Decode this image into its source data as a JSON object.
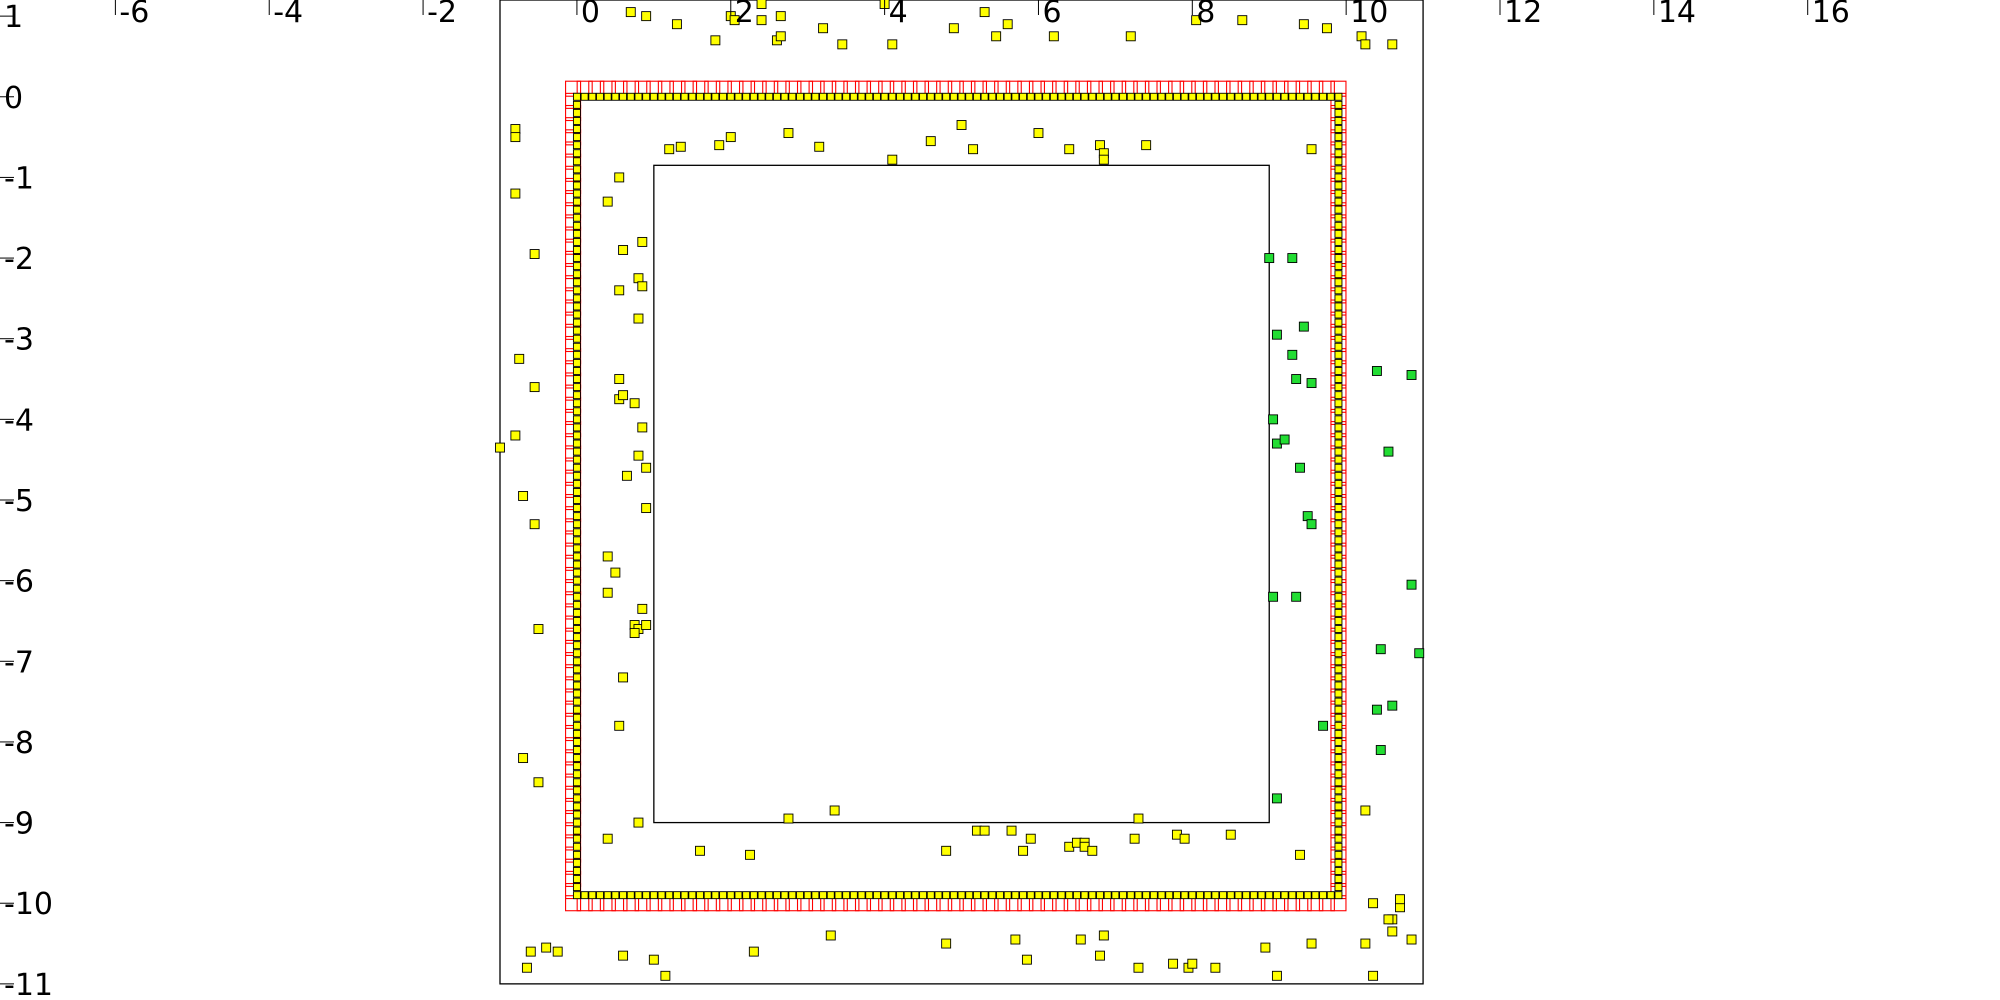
{
  "chart_data": {
    "type": "scatter",
    "title": "",
    "xlabel": "",
    "ylabel": "",
    "xlim": [
      -7.5,
      18.5
    ],
    "ylim": [
      -11.2,
      1.2
    ],
    "x_ticks": [
      -6,
      -4,
      -2,
      0,
      2,
      4,
      6,
      8,
      10,
      12,
      14,
      16
    ],
    "y_ticks": [
      1,
      0,
      -1,
      -2,
      -3,
      -4,
      -5,
      -6,
      -7,
      -8,
      -9,
      -10,
      -11
    ],
    "grid": false,
    "rectangles": [
      {
        "name": "outer-boundary",
        "x0": -1.0,
        "x1": 11.0,
        "y0": -11.0,
        "y1": 1.2,
        "color": "#000000"
      },
      {
        "name": "inner-boundary",
        "x0": 1.0,
        "x1": 9.0,
        "y0": -9.0,
        "y1": -0.85,
        "color": "#000000"
      }
    ],
    "series": [
      {
        "kind": "boundary-ring",
        "marker": "square-outline",
        "color": "#ff0000",
        "trace": [
          [
            -0.05,
            0.1
          ],
          [
            9.9,
            0.1
          ],
          [
            9.9,
            -10.0
          ],
          [
            -0.05,
            -10.0
          ],
          [
            -0.05,
            0.1
          ]
        ],
        "spacing": 0.15
      },
      {
        "kind": "boundary-ring",
        "marker": "square-filled",
        "color": "#ffff00",
        "trace": [
          [
            0.0,
            0.0
          ],
          [
            9.9,
            0.0
          ],
          [
            9.9,
            -9.9
          ],
          [
            0.0,
            -9.9
          ],
          [
            0.0,
            0.0
          ]
        ],
        "spacing": 0.1
      },
      {
        "marker": "square-filled",
        "color": "#ffff00",
        "points": [
          [
            0.7,
            1.05
          ],
          [
            0.9,
            1.0
          ],
          [
            1.3,
            0.9
          ],
          [
            1.8,
            0.7
          ],
          [
            2.0,
            1.0
          ],
          [
            2.05,
            0.95
          ],
          [
            2.4,
            1.15
          ],
          [
            2.4,
            0.95
          ],
          [
            2.65,
            1.0
          ],
          [
            2.6,
            0.7
          ],
          [
            2.65,
            0.75
          ],
          [
            3.2,
            0.85
          ],
          [
            3.45,
            0.65
          ],
          [
            4.0,
            1.15
          ],
          [
            4.1,
            0.65
          ],
          [
            4.9,
            0.85
          ],
          [
            5.3,
            1.05
          ],
          [
            5.45,
            0.75
          ],
          [
            5.6,
            0.9
          ],
          [
            6.2,
            0.75
          ],
          [
            7.2,
            0.75
          ],
          [
            8.05,
            0.95
          ],
          [
            8.65,
            0.95
          ],
          [
            9.45,
            0.9
          ],
          [
            9.75,
            0.85
          ],
          [
            10.2,
            0.75
          ],
          [
            10.25,
            0.65
          ],
          [
            10.6,
            0.65
          ],
          [
            -0.8,
            -0.4
          ],
          [
            -0.8,
            -0.5
          ],
          [
            -0.8,
            -1.2
          ],
          [
            -0.55,
            -1.95
          ],
          [
            -0.75,
            -3.25
          ],
          [
            -0.55,
            -3.6
          ],
          [
            -0.8,
            -4.2
          ],
          [
            -1.0,
            -4.35
          ],
          [
            -0.7,
            -4.95
          ],
          [
            -0.55,
            -5.3
          ],
          [
            -0.5,
            -6.6
          ],
          [
            -0.7,
            -8.2
          ],
          [
            -0.5,
            -8.5
          ],
          [
            0.4,
            -1.3
          ],
          [
            0.55,
            -1.0
          ],
          [
            0.6,
            -1.9
          ],
          [
            0.85,
            -1.8
          ],
          [
            0.55,
            -2.4
          ],
          [
            0.8,
            -2.25
          ],
          [
            0.85,
            -2.35
          ],
          [
            0.8,
            -2.75
          ],
          [
            0.55,
            -3.5
          ],
          [
            0.55,
            -3.75
          ],
          [
            0.6,
            -3.7
          ],
          [
            0.75,
            -3.8
          ],
          [
            0.85,
            -4.1
          ],
          [
            0.8,
            -4.45
          ],
          [
            0.65,
            -4.7
          ],
          [
            0.9,
            -4.6
          ],
          [
            0.9,
            -5.1
          ],
          [
            0.4,
            -5.7
          ],
          [
            0.5,
            -5.9
          ],
          [
            0.4,
            -6.15
          ],
          [
            0.85,
            -6.35
          ],
          [
            0.75,
            -6.55
          ],
          [
            0.8,
            -6.6
          ],
          [
            0.9,
            -6.55
          ],
          [
            0.75,
            -6.65
          ],
          [
            0.6,
            -7.2
          ],
          [
            0.55,
            -7.8
          ],
          [
            0.4,
            -9.2
          ],
          [
            0.8,
            -9.0
          ],
          [
            1.2,
            -0.65
          ],
          [
            1.35,
            -0.62
          ],
          [
            1.85,
            -0.6
          ],
          [
            2.0,
            -0.5
          ],
          [
            2.75,
            -0.45
          ],
          [
            3.15,
            -0.62
          ],
          [
            4.1,
            -0.78
          ],
          [
            4.6,
            -0.55
          ],
          [
            5.0,
            -0.35
          ],
          [
            5.15,
            -0.65
          ],
          [
            6.0,
            -0.45
          ],
          [
            6.4,
            -0.65
          ],
          [
            6.8,
            -0.6
          ],
          [
            6.85,
            -0.7
          ],
          [
            6.85,
            -0.78
          ],
          [
            7.4,
            -0.6
          ],
          [
            9.55,
            -0.65
          ],
          [
            1.6,
            -9.35
          ],
          [
            2.25,
            -9.4
          ],
          [
            2.75,
            -8.95
          ],
          [
            3.35,
            -8.85
          ],
          [
            4.8,
            -9.35
          ],
          [
            5.2,
            -9.1
          ],
          [
            5.3,
            -9.1
          ],
          [
            5.65,
            -9.1
          ],
          [
            5.8,
            -9.35
          ],
          [
            5.9,
            -9.2
          ],
          [
            6.4,
            -9.3
          ],
          [
            6.5,
            -9.25
          ],
          [
            6.6,
            -9.25
          ],
          [
            6.6,
            -9.3
          ],
          [
            6.7,
            -9.35
          ],
          [
            7.3,
            -8.95
          ],
          [
            7.25,
            -9.2
          ],
          [
            7.8,
            -9.15
          ],
          [
            7.9,
            -9.2
          ],
          [
            8.5,
            -9.15
          ],
          [
            9.4,
            -9.4
          ],
          [
            10.25,
            -8.85
          ],
          [
            -0.6,
            -10.6
          ],
          [
            -0.4,
            -10.55
          ],
          [
            -0.25,
            -10.6
          ],
          [
            -0.65,
            -10.8
          ],
          [
            0.6,
            -10.65
          ],
          [
            1.0,
            -10.7
          ],
          [
            1.15,
            -10.9
          ],
          [
            2.3,
            -10.6
          ],
          [
            3.3,
            -10.4
          ],
          [
            4.8,
            -10.5
          ],
          [
            5.7,
            -10.45
          ],
          [
            5.85,
            -10.7
          ],
          [
            6.55,
            -10.45
          ],
          [
            6.8,
            -10.65
          ],
          [
            6.85,
            -10.4
          ],
          [
            7.3,
            -10.8
          ],
          [
            7.75,
            -10.75
          ],
          [
            7.95,
            -10.8
          ],
          [
            8.0,
            -10.75
          ],
          [
            8.3,
            -10.8
          ],
          [
            8.95,
            -10.55
          ],
          [
            9.1,
            -10.9
          ],
          [
            9.55,
            -10.5
          ],
          [
            10.25,
            -10.5
          ],
          [
            10.35,
            -10.9
          ],
          [
            10.6,
            -10.35
          ],
          [
            10.6,
            -10.2
          ],
          [
            10.7,
            -10.05
          ],
          [
            10.7,
            -9.95
          ],
          [
            10.35,
            -10.0
          ],
          [
            10.55,
            -10.2
          ],
          [
            10.85,
            -10.45
          ]
        ]
      },
      {
        "marker": "square-filled",
        "color": "#22dd33",
        "points": [
          [
            9.0,
            -2.0
          ],
          [
            9.3,
            -2.0
          ],
          [
            9.1,
            -2.95
          ],
          [
            9.45,
            -2.85
          ],
          [
            9.3,
            -3.2
          ],
          [
            9.35,
            -3.5
          ],
          [
            9.55,
            -3.55
          ],
          [
            9.05,
            -4.0
          ],
          [
            9.1,
            -4.3
          ],
          [
            9.2,
            -4.25
          ],
          [
            9.4,
            -4.6
          ],
          [
            9.5,
            -5.2
          ],
          [
            9.55,
            -5.3
          ],
          [
            9.05,
            -6.2
          ],
          [
            9.35,
            -6.2
          ],
          [
            9.1,
            -8.7
          ],
          [
            9.7,
            -7.8
          ],
          [
            10.4,
            -3.4
          ],
          [
            10.85,
            -3.45
          ],
          [
            10.55,
            -4.4
          ],
          [
            10.85,
            -6.05
          ],
          [
            10.45,
            -6.85
          ],
          [
            10.95,
            -6.9
          ],
          [
            10.4,
            -7.6
          ],
          [
            10.6,
            -7.55
          ],
          [
            10.45,
            -8.1
          ]
        ]
      }
    ]
  }
}
